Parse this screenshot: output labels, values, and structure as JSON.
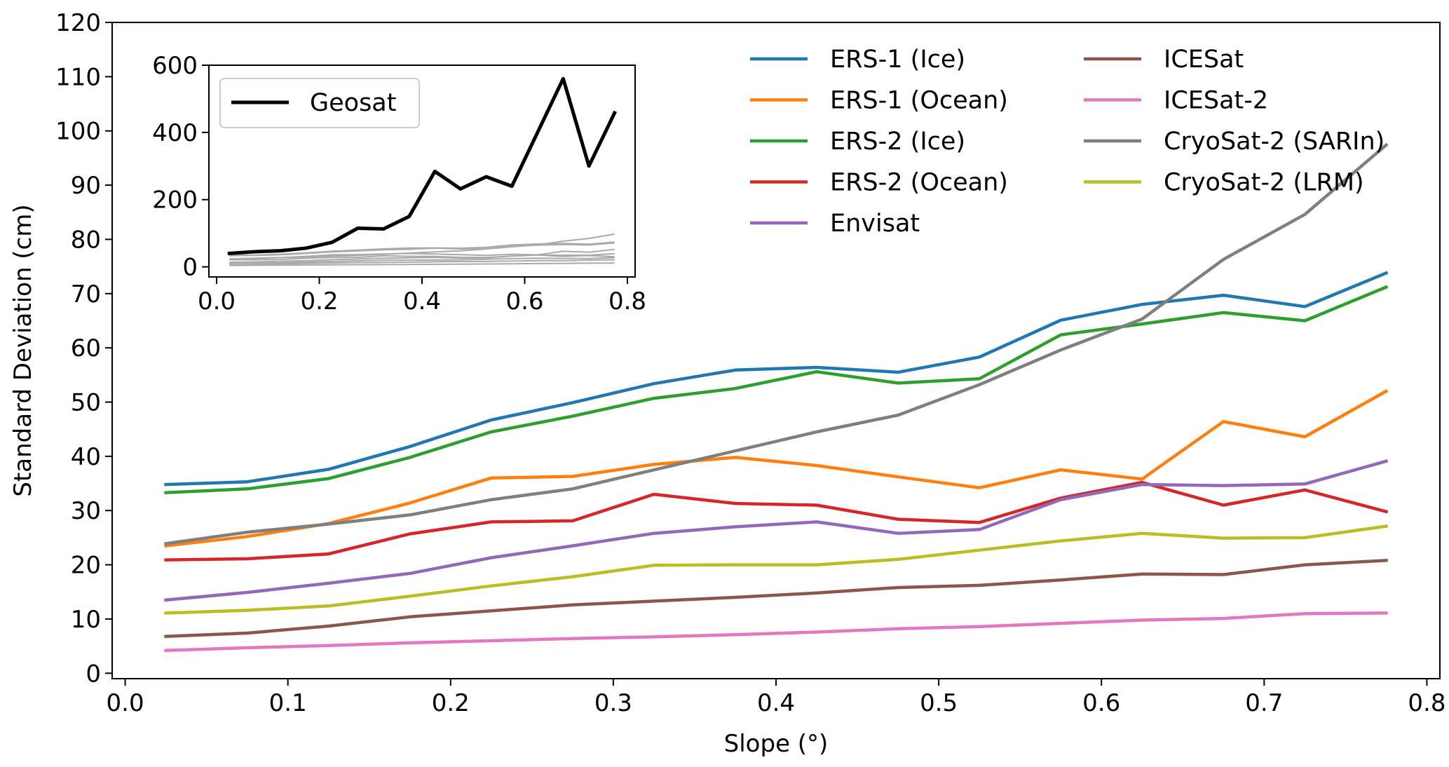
{
  "chart_data": [
    {
      "id": "main",
      "type": "line",
      "xlabel": "Slope (°)",
      "ylabel": "Standard Deviation (cm)",
      "xlim": [
        -0.008,
        0.808
      ],
      "ylim": [
        -1,
        120
      ],
      "xticks": [
        0.0,
        0.1,
        0.2,
        0.3,
        0.4,
        0.5,
        0.6,
        0.7,
        0.8
      ],
      "xtick_labels": [
        "0.0",
        "0.1",
        "0.2",
        "0.3",
        "0.4",
        "0.5",
        "0.6",
        "0.7",
        "0.8"
      ],
      "yticks": [
        0,
        10,
        20,
        30,
        40,
        50,
        60,
        70,
        80,
        90,
        100,
        110,
        120
      ],
      "ytick_labels": [
        "0",
        "10",
        "20",
        "30",
        "40",
        "50",
        "60",
        "70",
        "80",
        "90",
        "100",
        "110",
        "120"
      ],
      "grid": false,
      "legend_position": "top-right, two columns",
      "x": [
        0.025,
        0.075,
        0.125,
        0.175,
        0.225,
        0.275,
        0.325,
        0.375,
        0.425,
        0.475,
        0.525,
        0.575,
        0.625,
        0.675,
        0.725,
        0.775
      ],
      "series": [
        {
          "name": "ERS-1 (Ice)",
          "color": "#1f77b4",
          "values": [
            34.8,
            35.3,
            37.6,
            41.8,
            46.7,
            49.9,
            53.4,
            55.9,
            56.4,
            55.5,
            58.3,
            65.1,
            68.0,
            69.7,
            67.6,
            73.8
          ]
        },
        {
          "name": "ERS-1 (Ocean)",
          "color": "#ff7f0e",
          "values": [
            23.5,
            25.2,
            27.6,
            31.4,
            36.0,
            36.3,
            38.5,
            39.8,
            38.3,
            36.2,
            34.2,
            37.5,
            35.8,
            46.4,
            43.6,
            52.0
          ]
        },
        {
          "name": "ERS-2 (Ice)",
          "color": "#2ca02c",
          "values": [
            33.3,
            34.0,
            35.9,
            39.8,
            44.5,
            47.4,
            50.7,
            52.5,
            55.6,
            53.5,
            54.3,
            62.4,
            64.4,
            66.5,
            65.0,
            71.2
          ]
        },
        {
          "name": "ERS-2 (Ocean)",
          "color": "#d62728",
          "values": [
            20.9,
            21.1,
            22.0,
            25.7,
            27.9,
            28.1,
            33.0,
            31.3,
            31.0,
            28.4,
            27.8,
            32.3,
            35.2,
            31.0,
            33.8,
            29.8
          ]
        },
        {
          "name": "Envisat",
          "color": "#9467bd",
          "values": [
            13.5,
            14.9,
            16.6,
            18.4,
            21.3,
            23.5,
            25.8,
            27.0,
            27.9,
            25.8,
            26.5,
            32.0,
            34.8,
            34.6,
            34.9,
            39.1
          ]
        },
        {
          "name": "ICESat",
          "color": "#8c564b",
          "values": [
            6.8,
            7.4,
            8.7,
            10.4,
            11.5,
            12.6,
            13.3,
            14.0,
            14.8,
            15.8,
            16.2,
            17.2,
            18.3,
            18.2,
            20.0,
            20.8
          ]
        },
        {
          "name": "ICESat-2",
          "color": "#e377c2",
          "values": [
            4.2,
            4.7,
            5.1,
            5.6,
            6.0,
            6.4,
            6.7,
            7.1,
            7.6,
            8.2,
            8.6,
            9.2,
            9.8,
            10.1,
            11.0,
            11.1
          ]
        },
        {
          "name": "CryoSat-2 (SARIn)",
          "color": "#7f7f7f",
          "values": [
            23.9,
            26.0,
            27.5,
            29.2,
            32.0,
            34.0,
            37.5,
            41.0,
            44.5,
            47.6,
            53.2,
            59.6,
            65.3,
            76.3,
            84.6,
            97.4
          ]
        },
        {
          "name": "CryoSat-2 (LRM)",
          "color": "#bcbd22",
          "values": [
            11.1,
            11.6,
            12.4,
            14.2,
            16.1,
            17.8,
            19.9,
            20.0,
            20.0,
            21.0,
            22.7,
            24.4,
            25.8,
            24.9,
            25.0,
            27.1
          ]
        }
      ]
    },
    {
      "id": "inset",
      "type": "line",
      "xlabel": "",
      "ylabel": "",
      "xlim": [
        -0.015,
        0.815
      ],
      "ylim": [
        -30,
        600
      ],
      "xticks": [
        0.0,
        0.2,
        0.4,
        0.6,
        0.8
      ],
      "xtick_labels": [
        "0.0",
        "0.2",
        "0.4",
        "0.6",
        "0.8"
      ],
      "yticks": [
        0,
        200,
        400,
        600
      ],
      "ytick_labels": [
        "0",
        "200",
        "400",
        "600"
      ],
      "grid": false,
      "legend_position": "top-left",
      "x": [
        0.025,
        0.075,
        0.125,
        0.175,
        0.225,
        0.275,
        0.325,
        0.375,
        0.425,
        0.475,
        0.525,
        0.575,
        0.625,
        0.675,
        0.725,
        0.775
      ],
      "series": [
        {
          "name": "Geosat",
          "color": "#000000",
          "values": [
            40,
            45,
            48,
            56,
            73,
            115,
            113,
            150,
            284,
            232,
            268,
            240,
            400,
            560,
            300,
            458
          ]
        }
      ],
      "background_series_color": "#aaaaaa",
      "background_series": [
        {
          "values": [
            34.8,
            35.3,
            37.6,
            41.8,
            46.7,
            49.9,
            53.4,
            55.9,
            56.4,
            55.5,
            58.3,
            65.1,
            68.0,
            69.7,
            67.6,
            73.8
          ]
        },
        {
          "values": [
            23.5,
            25.2,
            27.6,
            31.4,
            36.0,
            36.3,
            38.5,
            39.8,
            38.3,
            36.2,
            34.2,
            37.5,
            35.8,
            46.4,
            43.6,
            52.0
          ]
        },
        {
          "values": [
            33.3,
            34.0,
            35.9,
            39.8,
            44.5,
            47.4,
            50.7,
            52.5,
            55.6,
            53.5,
            54.3,
            62.4,
            64.4,
            66.5,
            65.0,
            71.2
          ]
        },
        {
          "values": [
            20.9,
            21.1,
            22.0,
            25.7,
            27.9,
            28.1,
            33.0,
            31.3,
            31.0,
            28.4,
            27.8,
            32.3,
            35.2,
            31.0,
            33.8,
            29.8
          ]
        },
        {
          "values": [
            13.5,
            14.9,
            16.6,
            18.4,
            21.3,
            23.5,
            25.8,
            27.0,
            27.9,
            25.8,
            26.5,
            32.0,
            34.8,
            34.6,
            34.9,
            39.1
          ]
        },
        {
          "values": [
            6.8,
            7.4,
            8.7,
            10.4,
            11.5,
            12.6,
            13.3,
            14.0,
            14.8,
            15.8,
            16.2,
            17.2,
            18.3,
            18.2,
            20.0,
            20.8
          ]
        },
        {
          "values": [
            4.2,
            4.7,
            5.1,
            5.6,
            6.0,
            6.4,
            6.7,
            7.1,
            7.6,
            8.2,
            8.6,
            9.2,
            9.8,
            10.1,
            11.0,
            11.1
          ]
        },
        {
          "values": [
            23.9,
            26.0,
            27.5,
            29.2,
            32.0,
            34.0,
            37.5,
            41.0,
            44.5,
            47.6,
            53.2,
            59.6,
            65.3,
            76.3,
            84.6,
            97.4
          ]
        },
        {
          "values": [
            11.1,
            11.6,
            12.4,
            14.2,
            16.1,
            17.8,
            19.9,
            20.0,
            20.0,
            21.0,
            22.7,
            24.4,
            25.8,
            24.9,
            25.0,
            27.1
          ]
        }
      ]
    }
  ]
}
